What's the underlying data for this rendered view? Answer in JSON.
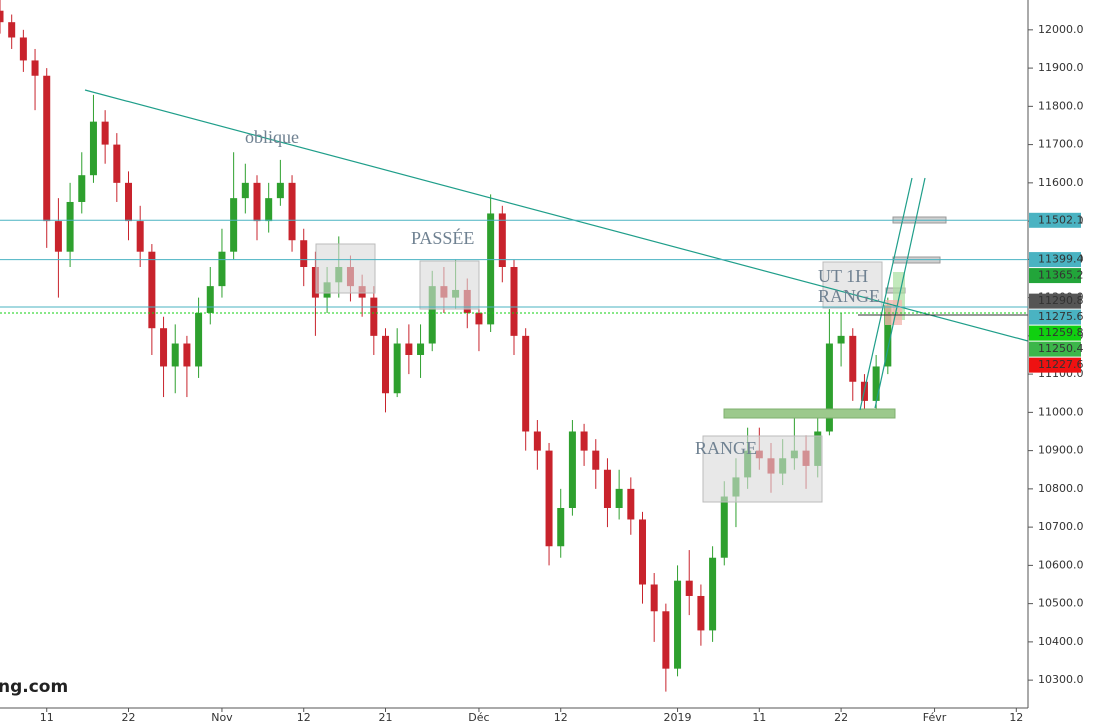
{
  "chart_data": {
    "type": "candlestick",
    "x": [
      -4,
      -3,
      -2,
      -1,
      0,
      1,
      2,
      3,
      4,
      5,
      6,
      7,
      8,
      9,
      10,
      11,
      12,
      13,
      14,
      15,
      16,
      17,
      18,
      19,
      20,
      21,
      22,
      23,
      24,
      25,
      26,
      27,
      28,
      29,
      30,
      31,
      32,
      33,
      34,
      35,
      36,
      37,
      38,
      39,
      40,
      41,
      42,
      43,
      44,
      45,
      46,
      47,
      48,
      49,
      50,
      51,
      52,
      53,
      54,
      55,
      56,
      57,
      58,
      59,
      60,
      61,
      62,
      63,
      64,
      65,
      66,
      67,
      68,
      69,
      70,
      71,
      72
    ],
    "open": [
      12050,
      12020,
      11980,
      11920,
      11880,
      11500,
      11420,
      11550,
      11620,
      11760,
      11700,
      11600,
      11500,
      11420,
      11220,
      11120,
      11180,
      11120,
      11260,
      11330,
      11420,
      11560,
      11600,
      11500,
      11560,
      11600,
      11450,
      11380,
      11300,
      11340,
      11380,
      11330,
      11300,
      11200,
      11050,
      11180,
      11150,
      11180,
      11330,
      11300,
      11320,
      11260,
      11230,
      11520,
      11380,
      11200,
      10950,
      10900,
      10650,
      10750,
      10950,
      10900,
      10850,
      10750,
      10800,
      10720,
      10550,
      10480,
      10330,
      10560,
      10520,
      10430,
      10620,
      10780,
      10830,
      10900,
      10880,
      10840,
      10880,
      10900,
      10860,
      10950,
      11180,
      11200,
      11080,
      11030,
      11120
    ],
    "high": [
      12080,
      12040,
      12000,
      11950,
      11900,
      11560,
      11600,
      11680,
      11830,
      11790,
      11730,
      11630,
      11540,
      11440,
      11250,
      11230,
      11200,
      11300,
      11380,
      11480,
      11680,
      11650,
      11620,
      11600,
      11660,
      11620,
      11480,
      11420,
      11380,
      11460,
      11410,
      11360,
      11330,
      11220,
      11220,
      11230,
      11230,
      11370,
      11380,
      11400,
      11350,
      11280,
      11570,
      11540,
      11400,
      11220,
      10980,
      10920,
      10800,
      10980,
      10970,
      10930,
      10880,
      10850,
      10830,
      10740,
      10580,
      10500,
      10600,
      10640,
      10550,
      10650,
      10820,
      10880,
      10960,
      10960,
      10920,
      10930,
      10990,
      10940,
      11000,
      11270,
      11260,
      11220,
      11100,
      11150,
      11300
    ],
    "low": [
      11990,
      11950,
      11890,
      11790,
      11430,
      11300,
      11380,
      11520,
      11600,
      11650,
      11550,
      11450,
      11380,
      11150,
      11040,
      11050,
      11040,
      11090,
      11230,
      11300,
      11400,
      11520,
      11450,
      11470,
      11540,
      11420,
      11330,
      11200,
      11260,
      11300,
      11290,
      11250,
      11150,
      11000,
      11040,
      11100,
      11090,
      11160,
      11260,
      11270,
      11220,
      11160,
      11210,
      11340,
      11150,
      10900,
      10850,
      10600,
      10620,
      10730,
      10860,
      10800,
      10700,
      10720,
      10680,
      10500,
      10400,
      10270,
      10310,
      10470,
      10390,
      10400,
      10600,
      10700,
      10800,
      10850,
      10790,
      10810,
      10850,
      10800,
      10830,
      10940,
      11120,
      11030,
      10990,
      11010,
      11100
    ],
    "close": [
      12020,
      11980,
      11920,
      11880,
      11500,
      11420,
      11550,
      11620,
      11760,
      11700,
      11600,
      11500,
      11420,
      11220,
      11120,
      11180,
      11120,
      11260,
      11330,
      11420,
      11560,
      11600,
      11500,
      11560,
      11600,
      11450,
      11380,
      11300,
      11340,
      11380,
      11330,
      11300,
      11200,
      11050,
      11180,
      11150,
      11180,
      11330,
      11300,
      11320,
      11260,
      11230,
      11520,
      11380,
      11200,
      10950,
      10900,
      10650,
      10750,
      10950,
      10900,
      10850,
      10750,
      10800,
      10720,
      10550,
      10480,
      10330,
      10560,
      10520,
      10430,
      10620,
      10780,
      10830,
      10900,
      10880,
      10840,
      10880,
      10900,
      10860,
      10950,
      11180,
      11200,
      11080,
      11030,
      11120,
      11280
    ],
    "up_color": "#2ea02e",
    "down_color": "#c8232c",
    "xlim": [
      -4,
      84
    ],
    "xticks": [
      {
        "value": 0,
        "label": "11"
      },
      {
        "value": 7,
        "label": "22"
      },
      {
        "value": 15,
        "label": "Nov"
      },
      {
        "value": 22,
        "label": "12"
      },
      {
        "value": 29,
        "label": "21"
      },
      {
        "value": 37,
        "label": "Déc"
      },
      {
        "value": 44,
        "label": "12"
      },
      {
        "value": 54,
        "label": "2019"
      },
      {
        "value": 61,
        "label": "11"
      },
      {
        "value": 68,
        "label": "22"
      },
      {
        "value": 76,
        "label": "Févr"
      },
      {
        "value": 83,
        "label": "12"
      }
    ],
    "ylim": [
      10235,
      12078
    ],
    "yticks": [
      {
        "value": 10300,
        "label": "10300.0"
      },
      {
        "value": 10400,
        "label": "10400.0"
      },
      {
        "value": 10500,
        "label": "10500.0"
      },
      {
        "value": 10600,
        "label": "10600.0"
      },
      {
        "value": 10700,
        "label": "10700.0"
      },
      {
        "value": 10800,
        "label": "10800.0"
      },
      {
        "value": 10900,
        "label": "10900.0"
      },
      {
        "value": 11000,
        "label": "11000.0"
      },
      {
        "value": 11100,
        "label": "11100.0"
      },
      {
        "value": 11200,
        "label": "11200.0"
      },
      {
        "value": 11300,
        "label": "11300.0"
      },
      {
        "value": 11400,
        "label": "11400.0"
      },
      {
        "value": 11500,
        "label": "11500.0"
      },
      {
        "value": 11600,
        "label": "11600.0"
      },
      {
        "value": 11700,
        "label": "11700.0"
      },
      {
        "value": 11800,
        "label": "11800.0"
      },
      {
        "value": 11900,
        "label": "11900.0"
      },
      {
        "value": 12000,
        "label": "12000.0"
      }
    ],
    "price_labels": [
      {
        "value": 11502.1,
        "color": "#4ab3c2",
        "line": "solid"
      },
      {
        "value": 11399.4,
        "color": "#4ab3c2",
        "line": "solid"
      },
      {
        "value": 11365.2,
        "color": "#22a53a"
      },
      {
        "value": 11290.8,
        "color": "#555555"
      },
      {
        "value": 11275.6,
        "color": "#4ab3c2",
        "line": "solid"
      },
      {
        "value": 11259.8,
        "color": "#10d010",
        "line": "dotted"
      },
      {
        "value": 11250.4,
        "color": "#3cb64a"
      },
      {
        "value": 11227.6,
        "color": "#ee1111"
      }
    ],
    "annotations": [
      "oblique",
      "PASSÉE",
      "RANGE",
      "UT 1H",
      "RANGE"
    ],
    "watermark": "ng.com"
  }
}
